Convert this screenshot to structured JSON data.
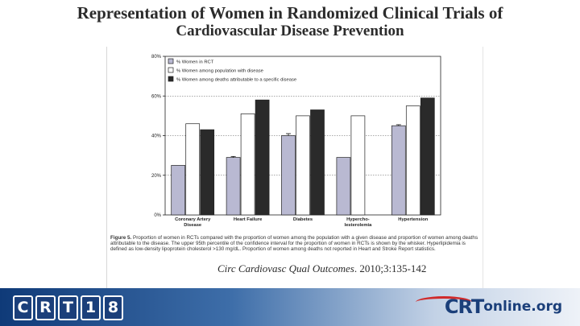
{
  "slide": {
    "title_line1": "Representation of Women in Randomized Clinical Trials of",
    "title_line2": "Cardiovascular Disease Prevention"
  },
  "chart_data": {
    "type": "bar",
    "categories": [
      "Coronary Artery\nDisease",
      "Heart Failure",
      "Diabetes",
      "Hypercho-\nlesterolemia",
      "Hypertension"
    ],
    "series": [
      {
        "name": "% Women in RCT",
        "values": [
          25,
          29,
          40,
          29,
          45
        ],
        "color": "#b9b9d2"
      },
      {
        "name": "% Women among population with disease",
        "values": [
          46,
          51,
          50,
          50,
          55
        ],
        "color": "#ffffff"
      },
      {
        "name": "% Women among deaths attributable to a specific disease",
        "values": [
          43,
          58,
          53,
          null,
          59
        ],
        "color": "#2a2a2a"
      }
    ],
    "whisker_upper": [
      null,
      29.5,
      41,
      null,
      45.5
    ],
    "yticks": [
      0,
      20,
      40,
      60,
      80
    ],
    "ytick_labels": [
      "0%",
      "20%",
      "40%",
      "60%",
      "80%"
    ],
    "ylim": [
      0,
      80
    ],
    "grid": true,
    "legend_position": "top-left"
  },
  "caption": {
    "label": "Figure 5.",
    "text": "Proportion of women in RCTs compared with the proportion of women among the population with a given disease and proportion of women among deaths attributable to the disease. The upper 95th percentile of the confidence interval for the proportion of women in RCTs is shown by the whisker. Hyperlipidemia is defined as low-density lipoprotein cholesterol >130 mg/dL. Proportion of women among deaths not reported in Heart and Stroke Report statistics."
  },
  "citation": {
    "journal": "Circ Cardiovasc Qual Outcomes",
    "ref": ". 2010;3:135-142"
  },
  "footer": {
    "crt_letters": [
      "C",
      "R",
      "T",
      "1",
      "8"
    ],
    "brand_left": "CRT",
    "brand_right": "online.org"
  }
}
